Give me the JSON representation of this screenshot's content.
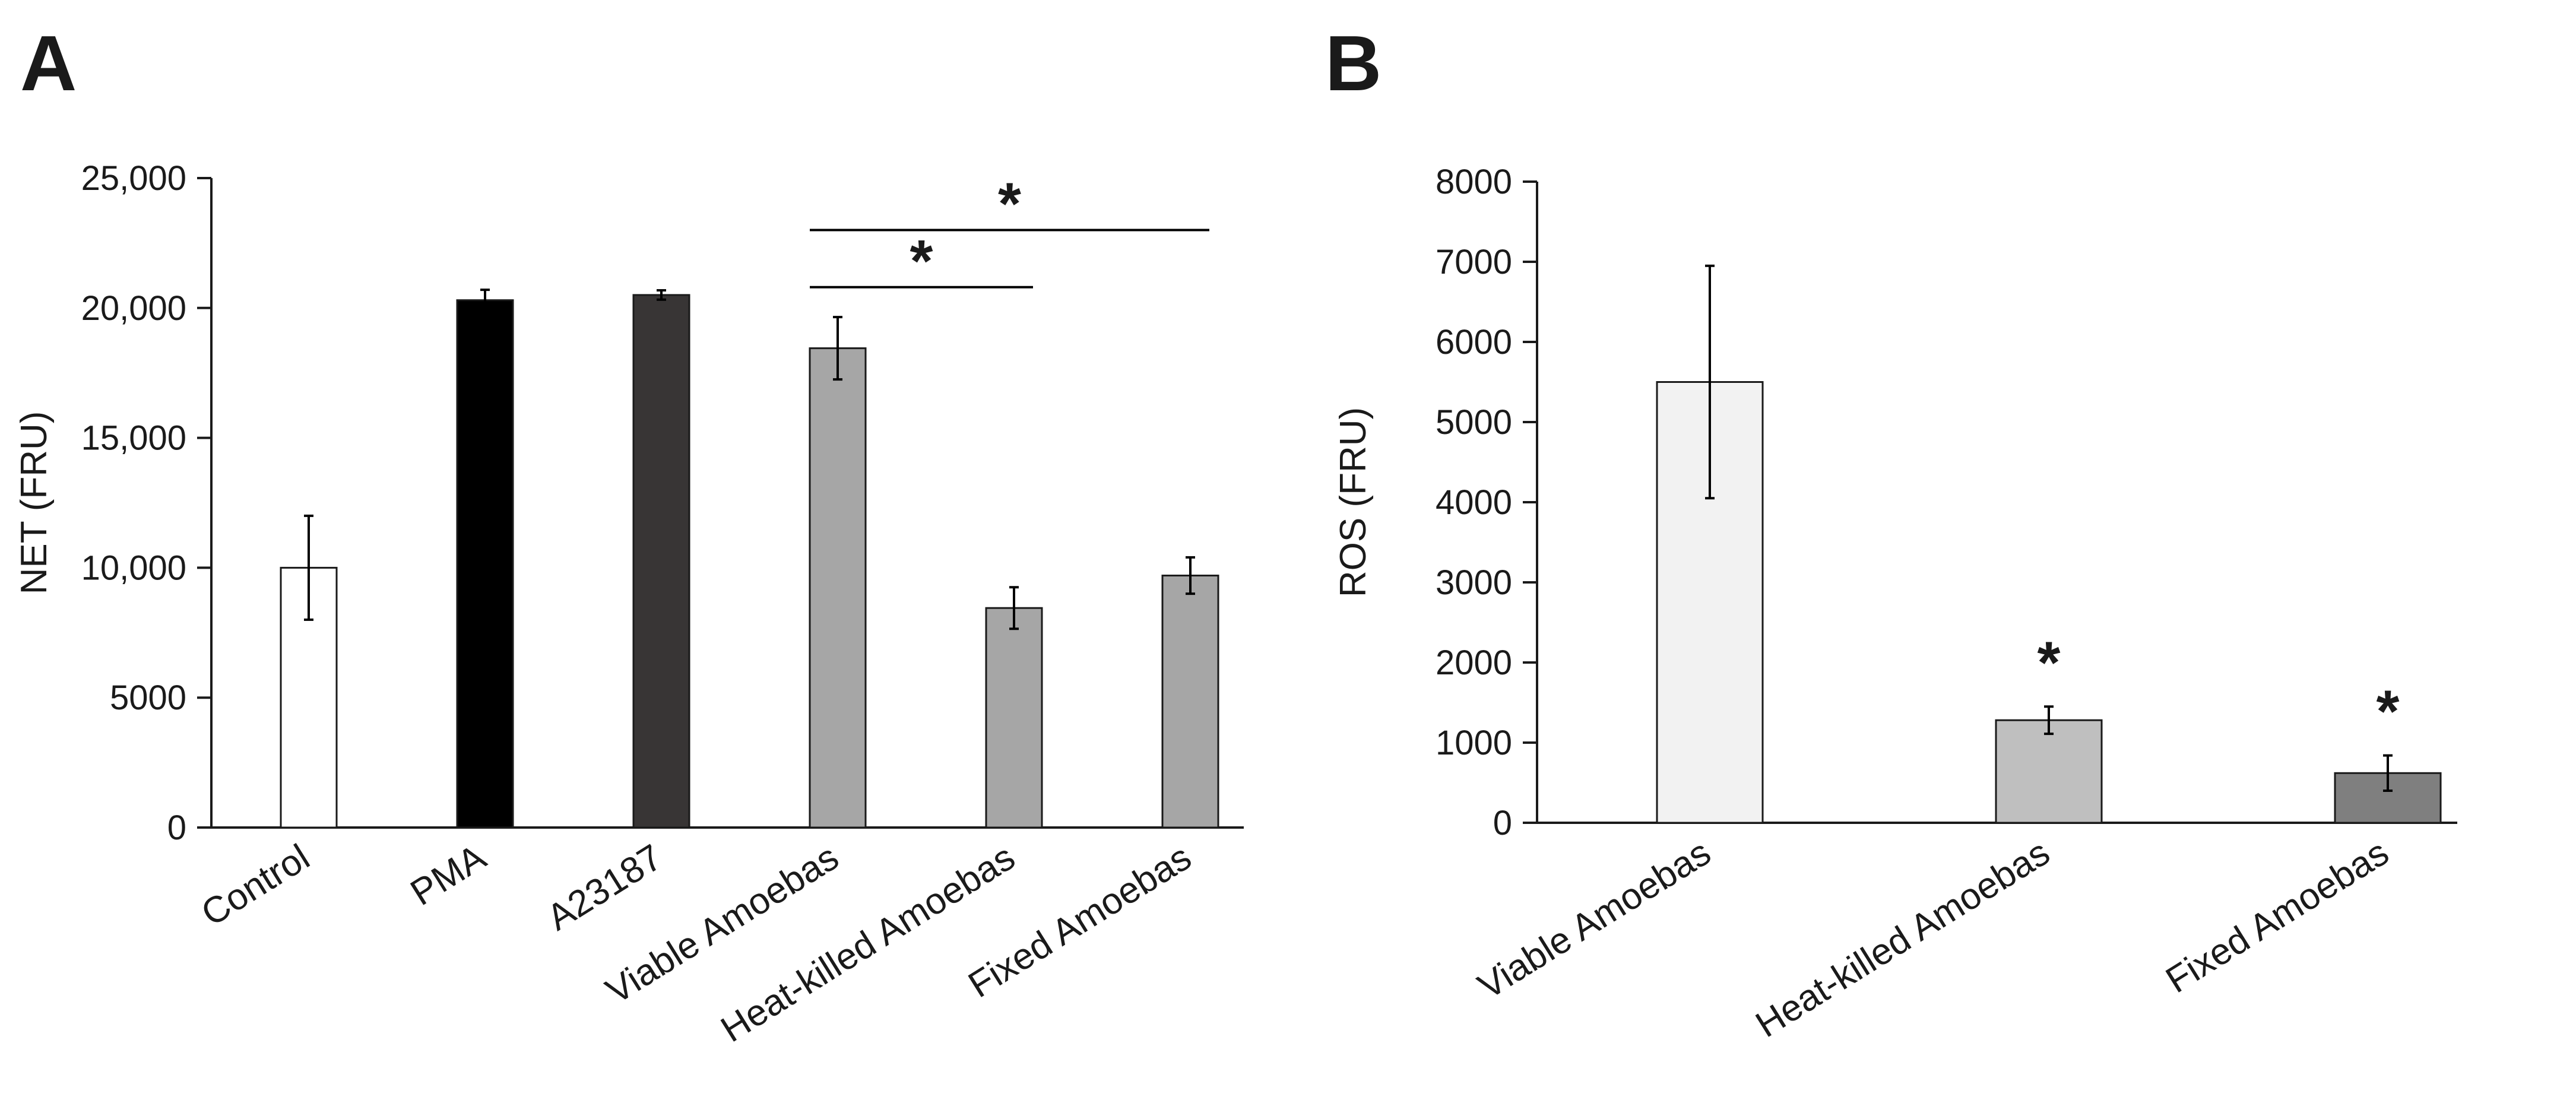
{
  "chart_data": [
    {
      "panel": "A",
      "type": "bar",
      "title": "",
      "xlabel": "",
      "ylabel": "NET (FRU)",
      "ylim": [
        0,
        25000
      ],
      "yticks": [
        0,
        5000,
        10000,
        15000,
        20000,
        25000
      ],
      "ytick_labels": [
        "0",
        "5000",
        "10,000",
        "15,000",
        "20,000",
        "25,000"
      ],
      "categories": [
        "Control",
        "PMA",
        "A23187",
        "Viable Amoebas",
        "Heat-killed  Amoebas",
        "Fixed Amoebas"
      ],
      "values": [
        10000,
        20300,
        20500,
        18450,
        8450,
        9700
      ],
      "errors": [
        2000,
        400,
        180,
        1200,
        800,
        700
      ],
      "colors": [
        "#ffffff",
        "#000000",
        "#383535",
        "#a6a6a6",
        "#a6a6a6",
        "#a6a6a6"
      ],
      "annotations": [
        {
          "text": "*",
          "from": 3,
          "to": 5,
          "level": 23000
        },
        {
          "text": "*",
          "from": 3,
          "to": 4,
          "level": 20800
        }
      ]
    },
    {
      "panel": "B",
      "type": "bar",
      "title": "",
      "xlabel": "",
      "ylabel": "ROS (FRU)",
      "ylim": [
        0,
        8000
      ],
      "yticks": [
        0,
        1000,
        2000,
        3000,
        4000,
        5000,
        6000,
        7000,
        8000
      ],
      "ytick_labels": [
        "0",
        "1000",
        "2000",
        "3000",
        "4000",
        "5000",
        "6000",
        "7000",
        "8000"
      ],
      "categories": [
        "Viable Amoebas",
        "Heat-killed  Amoebas",
        "Fixed Amoebas"
      ],
      "values": [
        5500,
        1280,
        620
      ],
      "errors": [
        1450,
        170,
        220
      ],
      "colors": [
        "#f2f2f2",
        "#bfbfbf",
        "#7f7f7f"
      ],
      "annotations": [
        {
          "text": "*",
          "bar": 1
        },
        {
          "text": "*",
          "bar": 2
        }
      ]
    }
  ]
}
